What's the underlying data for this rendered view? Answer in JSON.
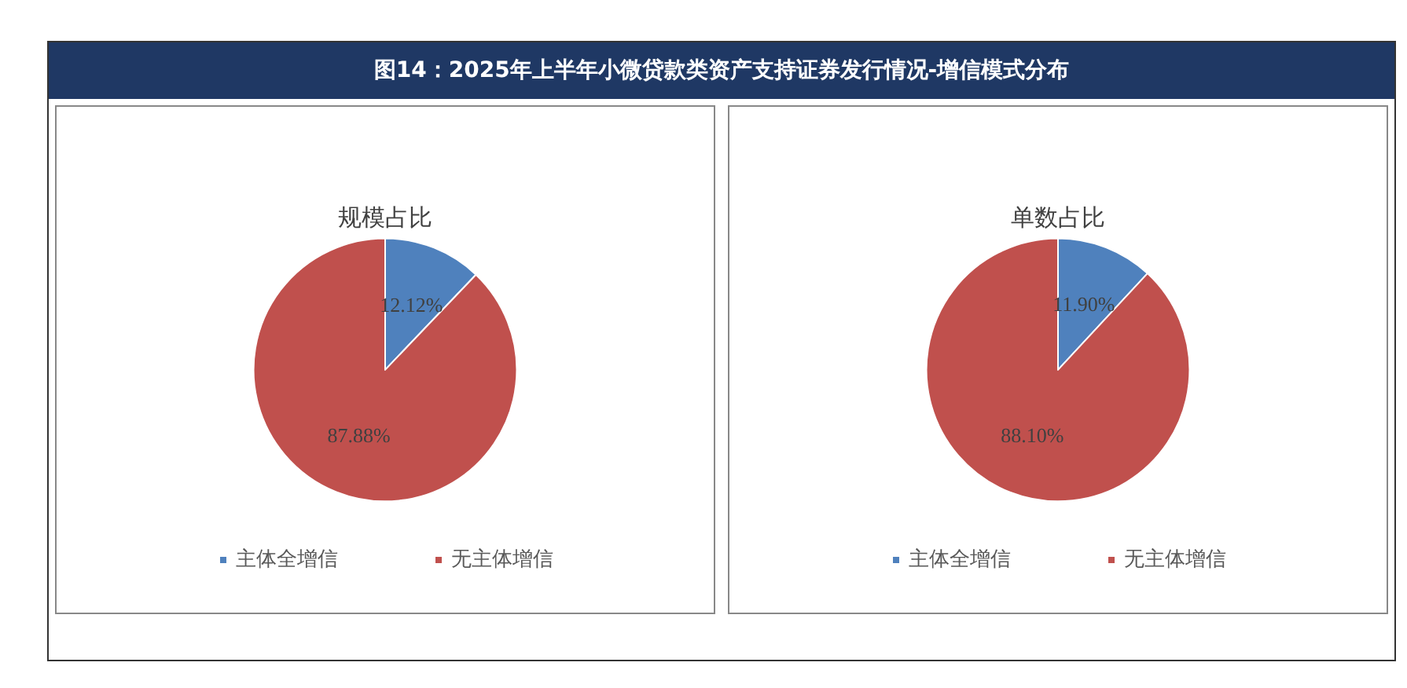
{
  "chart_data": [
    {
      "type": "pie",
      "annotations": [
        "图14：2025年上半年小微贷款类资产支持证券发行情况-增信模式分布"
      ],
      "title": "规模占比",
      "categories": [
        "主体全增信",
        "无主体增信"
      ],
      "values": [
        12.12,
        87.88
      ],
      "colors": [
        "#4f81bd",
        "#c0504d"
      ],
      "value_labels": [
        "12.12%",
        "87.88%"
      ],
      "legend": "bottom"
    },
    {
      "type": "pie",
      "title": "单数占比",
      "categories": [
        "主体全增信",
        "无主体增信"
      ],
      "values": [
        11.9,
        88.1
      ],
      "colors": [
        "#4f81bd",
        "#c0504d"
      ],
      "value_labels": [
        "11.90%",
        "88.10%"
      ],
      "legend": "bottom"
    }
  ]
}
